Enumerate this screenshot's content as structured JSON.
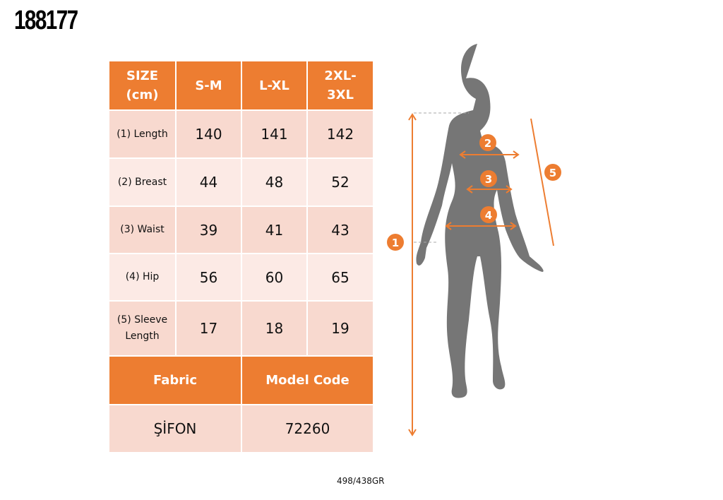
{
  "product_code": "188177",
  "table": {
    "header": [
      "SIZE (cm)",
      "S-M",
      "L-XL",
      "2XL-3XL"
    ],
    "rows": [
      {
        "label": "(1) Length",
        "values": [
          "140",
          "141",
          "142"
        ]
      },
      {
        "label": "(2) Breast",
        "values": [
          "44",
          "48",
          "52"
        ]
      },
      {
        "label": "(3) Waist",
        "values": [
          "39",
          "41",
          "43"
        ]
      },
      {
        "label": "(4) Hip",
        "values": [
          "56",
          "60",
          "65"
        ]
      },
      {
        "label": "(5) Sleeve Length",
        "values": [
          "17",
          "18",
          "19"
        ]
      }
    ],
    "fabric_label": "Fabric",
    "fabric_value": "ŞİFON",
    "model_code_label": "Model Code",
    "model_code_value": "72260"
  },
  "figure": {
    "markers": [
      "1",
      "2",
      "3",
      "4",
      "5"
    ],
    "accent": "#ed7d31",
    "silhouette": "#767676"
  },
  "footer": "498/438GR"
}
